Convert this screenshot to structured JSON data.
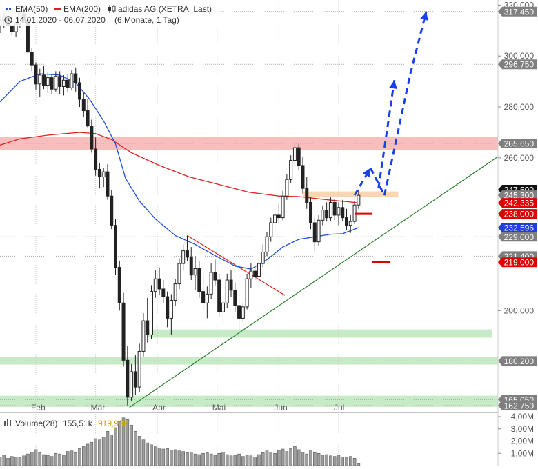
{
  "chart_data": {
    "type": "candlestick",
    "title": "adidas AG (XETRA, Last)",
    "date_range": "14.01.2020 - 06.07.2020",
    "period": "(6 Monate, 1 Tag)",
    "legend": [
      {
        "name": "EMA(50)",
        "color": "#1f4fd8"
      },
      {
        "name": "EMA(200)",
        "color": "#e02020"
      }
    ],
    "y_axis_ticks": [
      {
        "value": 200000,
        "label": "200,000"
      },
      {
        "value": 260000,
        "label": "260,000"
      },
      {
        "value": 280000,
        "label": "280,000"
      },
      {
        "value": 300000,
        "label": "300,000"
      },
      {
        "value": 320000,
        "label": "320,000"
      }
    ],
    "ylim": [
      160000,
      322000
    ],
    "x_axis_labels": [
      {
        "label": "Feb",
        "day": 18
      },
      {
        "label": "Mär",
        "day": 48
      },
      {
        "label": "Apr",
        "day": 79
      },
      {
        "label": "Mai",
        "day": 109
      },
      {
        "label": "Jun",
        "day": 140
      },
      {
        "label": "Jul",
        "day": 170
      }
    ],
    "xlim": [
      0,
      250
    ],
    "price_tags": [
      {
        "label": "317,450",
        "value": 317450,
        "style": "gray"
      },
      {
        "label": "296,750",
        "value": 296750,
        "style": "gray"
      },
      {
        "label": "265,650",
        "value": 265650,
        "style": "gray"
      },
      {
        "label": "247,500",
        "value": 247500,
        "style": "black"
      },
      {
        "label": "245,300",
        "value": 245300,
        "style": "gray"
      },
      {
        "label": "242,335",
        "value": 242335,
        "style": "red"
      },
      {
        "label": "238,000",
        "value": 238000,
        "style": "red"
      },
      {
        "label": "232,596",
        "value": 232596,
        "style": "blue"
      },
      {
        "label": "229,000",
        "value": 229000,
        "style": "gray"
      },
      {
        "label": "221,400",
        "value": 221400,
        "style": "gray"
      },
      {
        "label": "219,000",
        "value": 219000,
        "style": "red"
      },
      {
        "label": "180,200",
        "value": 180200,
        "style": "gray"
      },
      {
        "label": "165,050",
        "value": 165050,
        "style": "gray"
      },
      {
        "label": "162,750",
        "value": 162750,
        "style": "gray"
      }
    ],
    "horizontal_lines": [
      317450,
      296750,
      265650,
      229000,
      221400,
      180200,
      165050,
      162750
    ],
    "zones": [
      {
        "y1": 263000,
        "y2": 268300,
        "x1": 0,
        "x2": 250,
        "color": "#f7b3b3"
      },
      {
        "y1": 244500,
        "y2": 246800,
        "x1": 152,
        "x2": 200,
        "color": "#f9cfa8"
      },
      {
        "y1": 189400,
        "y2": 192600,
        "x1": 74,
        "x2": 247,
        "color": "#bde8bd"
      },
      {
        "y1": 178800,
        "y2": 181800,
        "x1": 0,
        "x2": 250,
        "color": "#bde8bd"
      },
      {
        "y1": 162200,
        "y2": 166600,
        "x1": 0,
        "x2": 250,
        "color": "#bde8bd"
      }
    ],
    "ema50": [
      [
        0,
        282000
      ],
      [
        10,
        290000
      ],
      [
        20,
        293000
      ],
      [
        30,
        292500
      ],
      [
        38,
        289500
      ],
      [
        45,
        283000
      ],
      [
        52,
        274500
      ],
      [
        58,
        265500
      ],
      [
        63,
        252000
      ],
      [
        70,
        243000
      ],
      [
        78,
        236000
      ],
      [
        88,
        229500
      ],
      [
        98,
        226000
      ],
      [
        108,
        221600
      ],
      [
        118,
        217500
      ],
      [
        126,
        216300
      ],
      [
        134,
        220000
      ],
      [
        142,
        225000
      ],
      [
        150,
        228000
      ],
      [
        158,
        229000
      ],
      [
        166,
        230000
      ],
      [
        172,
        230200
      ],
      [
        180,
        232596
      ]
    ],
    "ema200": [
      [
        0,
        265000
      ],
      [
        10,
        267500
      ],
      [
        25,
        269000
      ],
      [
        40,
        270000
      ],
      [
        48,
        269500
      ],
      [
        56,
        267200
      ],
      [
        66,
        262000
      ],
      [
        80,
        257000
      ],
      [
        95,
        252500
      ],
      [
        110,
        249500
      ],
      [
        125,
        246500
      ],
      [
        140,
        245000
      ],
      [
        150,
        244800
      ],
      [
        165,
        243500
      ],
      [
        180,
        242335
      ]
    ],
    "trend_lines": [
      {
        "from": [
          65,
          162000
        ],
        "to": [
          250,
          260500
        ],
        "color": "#2e7d2e"
      },
      {
        "from": [
          94,
          229500
        ],
        "to": [
          143,
          206000
        ],
        "color": "#e02020"
      }
    ],
    "target_marks": [
      {
        "from": [
          178,
          238000
        ],
        "to": [
          187,
          238000
        ]
      },
      {
        "from": [
          187,
          219000
        ],
        "to": [
          196,
          219000
        ]
      }
    ],
    "projection": [
      [
        178,
        245300
      ],
      [
        186,
        256000
      ],
      [
        193,
        245300
      ],
      [
        206,
        293000
      ],
      [
        214,
        317450
      ]
    ],
    "projection_branch": [
      [
        190,
        248000
      ],
      [
        198,
        290500
      ]
    ],
    "candles": [
      [
        0,
        312000,
        316000,
        309000,
        314000
      ],
      [
        2,
        314000,
        317000,
        311000,
        315500
      ],
      [
        4,
        315500,
        318500,
        311500,
        312000
      ],
      [
        6,
        312000,
        315000,
        308000,
        309500
      ],
      [
        8,
        309500,
        313500,
        307500,
        312500
      ],
      [
        10,
        312500,
        318000,
        311000,
        316500
      ],
      [
        12,
        316500,
        319500,
        313000,
        314000
      ],
      [
        14,
        314000,
        315500,
        300000,
        301500
      ],
      [
        16,
        301500,
        303000,
        294000,
        296500
      ],
      [
        18,
        296500,
        297500,
        286500,
        289000
      ],
      [
        20,
        289000,
        295000,
        284000,
        292500
      ],
      [
        22,
        292500,
        296000,
        287000,
        288500
      ],
      [
        24,
        288500,
        293500,
        285500,
        291500
      ],
      [
        26,
        291500,
        293000,
        285000,
        287000
      ],
      [
        28,
        287000,
        294000,
        286000,
        292000
      ],
      [
        30,
        292000,
        294000,
        285000,
        288000
      ],
      [
        32,
        288000,
        292500,
        284500,
        290500
      ],
      [
        34,
        290500,
        293000,
        286000,
        287500
      ],
      [
        36,
        287500,
        294500,
        286500,
        293000
      ],
      [
        38,
        293000,
        295500,
        286000,
        289500
      ],
      [
        40,
        289500,
        291500,
        280000,
        283000
      ],
      [
        42,
        283000,
        285500,
        276000,
        278500
      ],
      [
        44,
        278500,
        283000,
        272000,
        272500
      ],
      [
        46,
        272500,
        275000,
        262000,
        263500
      ],
      [
        48,
        263500,
        268000,
        253000,
        255500
      ],
      [
        50,
        255500,
        258000,
        248000,
        252500
      ],
      [
        52,
        252500,
        256000,
        248500,
        254500
      ],
      [
        54,
        254500,
        257500,
        243500,
        245000
      ],
      [
        56,
        245000,
        247500,
        232000,
        233500
      ],
      [
        58,
        233500,
        236000,
        214000,
        217000
      ],
      [
        60,
        217000,
        219500,
        200000,
        203000
      ],
      [
        62,
        203000,
        207000,
        178000,
        180500
      ],
      [
        64,
        180500,
        186000,
        162800,
        166000
      ],
      [
        66,
        166000,
        179000,
        164500,
        176000
      ],
      [
        68,
        176000,
        182500,
        167000,
        170000
      ],
      [
        70,
        170000,
        187000,
        168000,
        184000
      ],
      [
        72,
        184000,
        199000,
        182000,
        196000
      ],
      [
        74,
        196000,
        205000,
        187500,
        190500
      ],
      [
        76,
        190500,
        210000,
        189000,
        207500
      ],
      [
        78,
        207500,
        216000,
        205000,
        212500
      ],
      [
        80,
        212500,
        217000,
        206000,
        208500
      ],
      [
        82,
        208500,
        212000,
        203000,
        205500
      ],
      [
        84,
        205500,
        207500,
        193500,
        197000
      ],
      [
        86,
        197000,
        206500,
        190500,
        204000
      ],
      [
        88,
        204000,
        212500,
        202000,
        210500
      ],
      [
        90,
        210500,
        220500,
        208500,
        218500
      ],
      [
        92,
        218500,
        226000,
        216000,
        223500
      ],
      [
        94,
        223500,
        229500,
        219500,
        221000
      ],
      [
        96,
        221000,
        225000,
        212000,
        214000
      ],
      [
        98,
        214000,
        221500,
        208000,
        216500
      ],
      [
        100,
        216500,
        219500,
        205000,
        207500
      ],
      [
        102,
        207500,
        214000,
        200500,
        203000
      ],
      [
        104,
        203000,
        209500,
        197000,
        206500
      ],
      [
        106,
        206500,
        218500,
        204500,
        215000
      ],
      [
        108,
        215000,
        220000,
        210000,
        212000
      ],
      [
        110,
        212000,
        214500,
        197500,
        199500
      ],
      [
        112,
        199500,
        206000,
        195000,
        203000
      ],
      [
        114,
        203000,
        214500,
        201000,
        212000
      ],
      [
        116,
        212000,
        216000,
        205500,
        208000
      ],
      [
        118,
        208000,
        211000,
        199500,
        202000
      ],
      [
        120,
        202000,
        205000,
        191500,
        197000
      ],
      [
        122,
        197000,
        203000,
        195500,
        201500
      ],
      [
        124,
        201500,
        214500,
        200500,
        212500
      ],
      [
        126,
        212500,
        218500,
        209000,
        215500
      ],
      [
        128,
        215500,
        217000,
        212000,
        213500
      ],
      [
        130,
        213500,
        220000,
        211500,
        218500
      ],
      [
        132,
        218500,
        226000,
        217000,
        223000
      ],
      [
        134,
        223000,
        231000,
        221500,
        229000
      ],
      [
        136,
        229000,
        236500,
        227000,
        234500
      ],
      [
        138,
        234500,
        240000,
        232000,
        237500
      ],
      [
        140,
        237500,
        242000,
        234500,
        236500
      ],
      [
        142,
        236500,
        247000,
        235500,
        245000
      ],
      [
        144,
        245000,
        253500,
        243500,
        251500
      ],
      [
        146,
        251500,
        261000,
        250000,
        259000
      ],
      [
        148,
        259000,
        265500,
        257000,
        264000
      ],
      [
        150,
        264000,
        265500,
        255000,
        257000
      ],
      [
        152,
        257000,
        260500,
        246000,
        248000
      ],
      [
        154,
        248000,
        252500,
        240000,
        242500
      ],
      [
        156,
        242500,
        244500,
        232000,
        234500
      ],
      [
        158,
        234500,
        236500,
        223500,
        227000
      ],
      [
        160,
        227000,
        237500,
        225500,
        235500
      ],
      [
        162,
        235500,
        241000,
        233500,
        239500
      ],
      [
        164,
        239500,
        242500,
        235000,
        236500
      ],
      [
        166,
        236500,
        244500,
        235000,
        242500
      ],
      [
        168,
        242500,
        244000,
        235500,
        237500
      ],
      [
        170,
        237500,
        242500,
        233500,
        240500
      ],
      [
        172,
        240500,
        243500,
        235000,
        236500
      ],
      [
        174,
        236500,
        240000,
        231500,
        233500
      ],
      [
        176,
        233500,
        237500,
        230500,
        235000
      ],
      [
        178,
        235000,
        243000,
        234000,
        241500
      ],
      [
        180,
        241500,
        247500,
        240000,
        245300
      ]
    ]
  },
  "volume": {
    "title": "Volume(28)",
    "value": "155,51k",
    "avg": "919,93k",
    "ylim": [
      0,
      4000000
    ],
    "ticks": [
      {
        "value": 1000000,
        "label": "1,00M"
      },
      {
        "value": 2000000,
        "label": "2,00M"
      },
      {
        "value": 3000000,
        "label": "3,00M"
      },
      {
        "value": 4000000,
        "label": "4,00M"
      }
    ],
    "bars": [
      [
        0,
        0.7
      ],
      [
        2,
        0.85
      ],
      [
        4,
        0.6
      ],
      [
        6,
        0.75
      ],
      [
        8,
        0.7
      ],
      [
        10,
        0.65
      ],
      [
        12,
        0.8
      ],
      [
        14,
        0.95
      ],
      [
        16,
        1.1
      ],
      [
        18,
        1.3
      ],
      [
        20,
        1.05
      ],
      [
        22,
        0.9
      ],
      [
        24,
        0.85
      ],
      [
        26,
        0.75
      ],
      [
        28,
        1.0
      ],
      [
        30,
        0.95
      ],
      [
        32,
        0.85
      ],
      [
        34,
        1.15
      ],
      [
        36,
        1.2
      ],
      [
        38,
        1.05
      ],
      [
        40,
        1.4
      ],
      [
        42,
        1.55
      ],
      [
        44,
        1.75
      ],
      [
        46,
        1.9
      ],
      [
        48,
        2.2
      ],
      [
        50,
        2.1
      ],
      [
        52,
        2.35
      ],
      [
        54,
        2.8
      ],
      [
        56,
        2.5
      ],
      [
        58,
        3.1
      ],
      [
        60,
        3.6
      ],
      [
        62,
        3.9
      ],
      [
        64,
        3.75
      ],
      [
        66,
        3.3
      ],
      [
        68,
        2.8
      ],
      [
        70,
        2.4
      ],
      [
        72,
        2.1
      ],
      [
        74,
        1.85
      ],
      [
        76,
        1.7
      ],
      [
        78,
        1.6
      ],
      [
        80,
        1.45
      ],
      [
        82,
        1.35
      ],
      [
        84,
        1.4
      ],
      [
        86,
        1.25
      ],
      [
        88,
        1.3
      ],
      [
        90,
        1.2
      ],
      [
        92,
        1.15
      ],
      [
        94,
        1.05
      ],
      [
        96,
        1.1
      ],
      [
        98,
        0.95
      ],
      [
        100,
        0.9
      ],
      [
        102,
        1.0
      ],
      [
        104,
        1.05
      ],
      [
        106,
        0.95
      ],
      [
        108,
        0.85
      ],
      [
        110,
        1.0
      ],
      [
        112,
        1.1
      ],
      [
        114,
        0.9
      ],
      [
        116,
        0.8
      ],
      [
        118,
        0.85
      ],
      [
        120,
        0.95
      ],
      [
        122,
        0.75
      ],
      [
        124,
        0.85
      ],
      [
        126,
        0.8
      ],
      [
        128,
        0.7
      ],
      [
        130,
        0.9
      ],
      [
        132,
        1.05
      ],
      [
        134,
        1.2
      ],
      [
        136,
        1.1
      ],
      [
        138,
        1.0
      ],
      [
        140,
        1.25
      ],
      [
        142,
        1.35
      ],
      [
        144,
        1.15
      ],
      [
        146,
        1.4
      ],
      [
        148,
        1.55
      ],
      [
        150,
        1.3
      ],
      [
        152,
        1.1
      ],
      [
        154,
        0.95
      ],
      [
        156,
        1.25
      ],
      [
        158,
        1.05
      ],
      [
        160,
        1.0
      ],
      [
        162,
        0.85
      ],
      [
        164,
        0.9
      ],
      [
        166,
        0.8
      ],
      [
        168,
        0.75
      ],
      [
        170,
        0.85
      ],
      [
        172,
        0.7
      ],
      [
        174,
        0.65
      ],
      [
        176,
        0.75
      ],
      [
        178,
        0.6
      ],
      [
        180,
        0.16
      ]
    ]
  }
}
